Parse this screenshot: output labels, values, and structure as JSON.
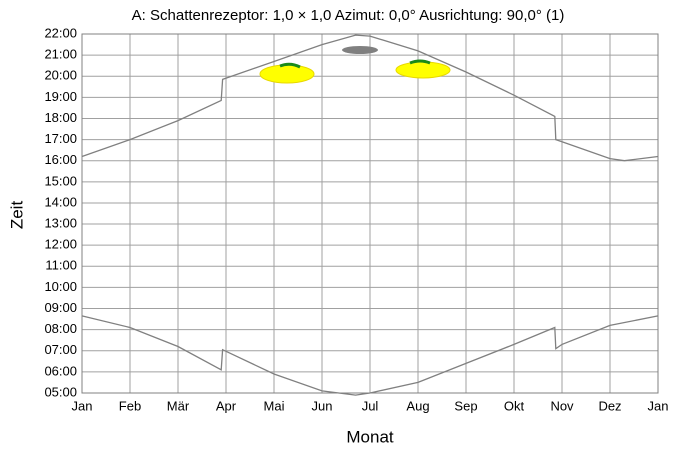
{
  "chart_data": {
    "type": "line",
    "title": "A: Schattenrezeptor: 1,0 × 1,0  Azimut: 0,0°  Ausrichtung: 90,0° (1)",
    "x_label": "Monat",
    "y_label": "Zeit",
    "xlim": [
      0,
      12
    ],
    "xticks": [
      {
        "value": 0,
        "label": "Jan"
      },
      {
        "value": 1,
        "label": "Feb"
      },
      {
        "value": 2,
        "label": "Mär"
      },
      {
        "value": 3,
        "label": "Apr"
      },
      {
        "value": 4,
        "label": "Mai"
      },
      {
        "value": 5,
        "label": "Jun"
      },
      {
        "value": 6,
        "label": "Jul"
      },
      {
        "value": 7,
        "label": "Aug"
      },
      {
        "value": 8,
        "label": "Sep"
      },
      {
        "value": 9,
        "label": "Okt"
      },
      {
        "value": 10,
        "label": "Nov"
      },
      {
        "value": 11,
        "label": "Dez"
      },
      {
        "value": 12,
        "label": "Jan"
      }
    ],
    "ylim": [
      5,
      22
    ],
    "yticks": [
      {
        "value": 5,
        "label": "05:00"
      },
      {
        "value": 6,
        "label": "06:00"
      },
      {
        "value": 7,
        "label": "07:00"
      },
      {
        "value": 8,
        "label": "08:00"
      },
      {
        "value": 9,
        "label": "09:00"
      },
      {
        "value": 10,
        "label": "10:00"
      },
      {
        "value": 11,
        "label": "11:00"
      },
      {
        "value": 12,
        "label": "12:00"
      },
      {
        "value": 13,
        "label": "13:00"
      },
      {
        "value": 14,
        "label": "14:00"
      },
      {
        "value": 15,
        "label": "15:00"
      },
      {
        "value": 16,
        "label": "16:00"
      },
      {
        "value": 17,
        "label": "17:00"
      },
      {
        "value": 18,
        "label": "18:00"
      },
      {
        "value": 19,
        "label": "19:00"
      },
      {
        "value": 20,
        "label": "20:00"
      },
      {
        "value": 21,
        "label": "21:00"
      },
      {
        "value": 22,
        "label": "22:00"
      }
    ],
    "grid": true,
    "series": [
      {
        "color": "#808080",
        "x": [
          0,
          1,
          2,
          2.9,
          2.93,
          4,
          5,
          5.7,
          6,
          7,
          8,
          9,
          9.85,
          9.87,
          10,
          11,
          11.3,
          12
        ],
        "values": [
          16.2,
          17.0,
          17.9,
          18.85,
          19.85,
          20.7,
          21.5,
          21.95,
          21.9,
          21.2,
          20.2,
          19.1,
          18.1,
          17.0,
          16.9,
          16.1,
          16.0,
          16.2
        ]
      },
      {
        "color": "#808080",
        "x": [
          0,
          1,
          2,
          2.9,
          2.93,
          4,
          5,
          5.7,
          6,
          7,
          8,
          9,
          9.85,
          9.87,
          10,
          11,
          12
        ],
        "values": [
          8.65,
          8.1,
          7.2,
          6.1,
          7.05,
          5.9,
          5.1,
          4.9,
          5.0,
          5.5,
          6.4,
          7.3,
          8.1,
          7.1,
          7.3,
          8.2,
          8.65
        ]
      }
    ]
  }
}
